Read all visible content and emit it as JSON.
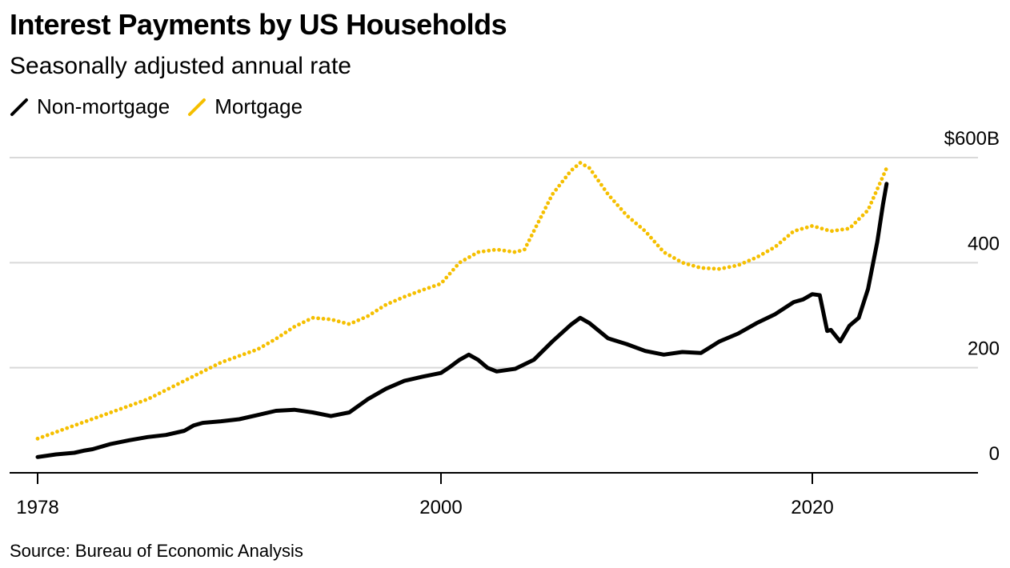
{
  "title": "Interest Payments by US Households",
  "subtitle": "Seasonally adjusted annual rate",
  "source": "Source: Bureau of Economic Analysis",
  "legend": [
    {
      "label": "Non-mortgage",
      "color": "#000000",
      "style": "solid"
    },
    {
      "label": "Mortgage",
      "color": "#f5bf00",
      "style": "dotted"
    }
  ],
  "chart_data": {
    "type": "line",
    "title": "Interest Payments by US Households",
    "subtitle": "Seasonally adjusted annual rate",
    "ylabel": "",
    "xlabel": "",
    "xlim": [
      1978,
      2030
    ],
    "ylim": [
      0,
      600
    ],
    "y_ticks": [
      {
        "value": 0,
        "label": "0"
      },
      {
        "value": 200,
        "label": "200"
      },
      {
        "value": 400,
        "label": "400"
      },
      {
        "value": 600,
        "label": "$600B"
      }
    ],
    "x_ticks": [
      {
        "value": 1978,
        "label": "1978"
      },
      {
        "value": 2000,
        "label": "2000"
      },
      {
        "value": 2020,
        "label": "2020"
      }
    ],
    "grid": true,
    "legend_position": "top-left",
    "series": [
      {
        "name": "Non-mortgage",
        "color": "#000000",
        "style": "solid",
        "x": [
          1978.0,
          1979.0,
          1980.0,
          1980.5,
          1981.0,
          1982.0,
          1983.0,
          1984.0,
          1985.0,
          1986.0,
          1986.5,
          1987.0,
          1988.0,
          1989.0,
          1990.0,
          1991.0,
          1992.0,
          1993.0,
          1994.0,
          1995.0,
          1996.0,
          1997.0,
          1998.0,
          1999.0,
          2000.0,
          2000.5,
          2001.0,
          2001.5,
          2002.0,
          2002.5,
          2003.0,
          2004.0,
          2005.0,
          2006.0,
          2007.0,
          2007.5,
          2008.0,
          2009.0,
          2010.0,
          2011.0,
          2012.0,
          2013.0,
          2014.0,
          2015.0,
          2016.0,
          2017.0,
          2018.0,
          2019.0,
          2019.5,
          2020.0,
          2020.4,
          2020.8,
          2021.0,
          2021.5,
          2022.0,
          2022.5,
          2023.0,
          2023.5,
          2023.8,
          2024.0
        ],
        "values": [
          30,
          35,
          38,
          42,
          45,
          55,
          62,
          68,
          72,
          80,
          90,
          95,
          98,
          102,
          110,
          118,
          120,
          115,
          108,
          115,
          140,
          160,
          175,
          183,
          190,
          202,
          215,
          225,
          215,
          200,
          193,
          198,
          215,
          250,
          282,
          295,
          285,
          256,
          245,
          232,
          225,
          230,
          228,
          250,
          265,
          285,
          302,
          325,
          330,
          340,
          338,
          270,
          272,
          250,
          280,
          295,
          350,
          440,
          510,
          550
        ]
      },
      {
        "name": "Mortgage",
        "color": "#f5bf00",
        "style": "dotted",
        "x": [
          1978.0,
          1980.0,
          1982.0,
          1984.0,
          1986.0,
          1988.0,
          1990.0,
          1991.0,
          1992.0,
          1993.0,
          1994.0,
          1995.0,
          1996.0,
          1997.0,
          1998.0,
          1999.0,
          2000.0,
          2000.5,
          2001.0,
          2002.0,
          2003.0,
          2004.0,
          2004.5,
          2005.0,
          2006.0,
          2007.0,
          2007.5,
          2008.0,
          2009.0,
          2010.0,
          2011.0,
          2012.0,
          2013.0,
          2014.0,
          2015.0,
          2016.0,
          2017.0,
          2018.0,
          2019.0,
          2020.0,
          2021.0,
          2022.0,
          2023.0,
          2023.5,
          2024.0
        ],
        "values": [
          65,
          90,
          115,
          140,
          175,
          210,
          235,
          255,
          278,
          295,
          292,
          283,
          298,
          320,
          335,
          348,
          360,
          380,
          400,
          420,
          425,
          420,
          425,
          460,
          530,
          575,
          590,
          580,
          530,
          490,
          460,
          420,
          400,
          390,
          388,
          395,
          410,
          430,
          460,
          470,
          460,
          465,
          500,
          540,
          580
        ]
      }
    ]
  }
}
